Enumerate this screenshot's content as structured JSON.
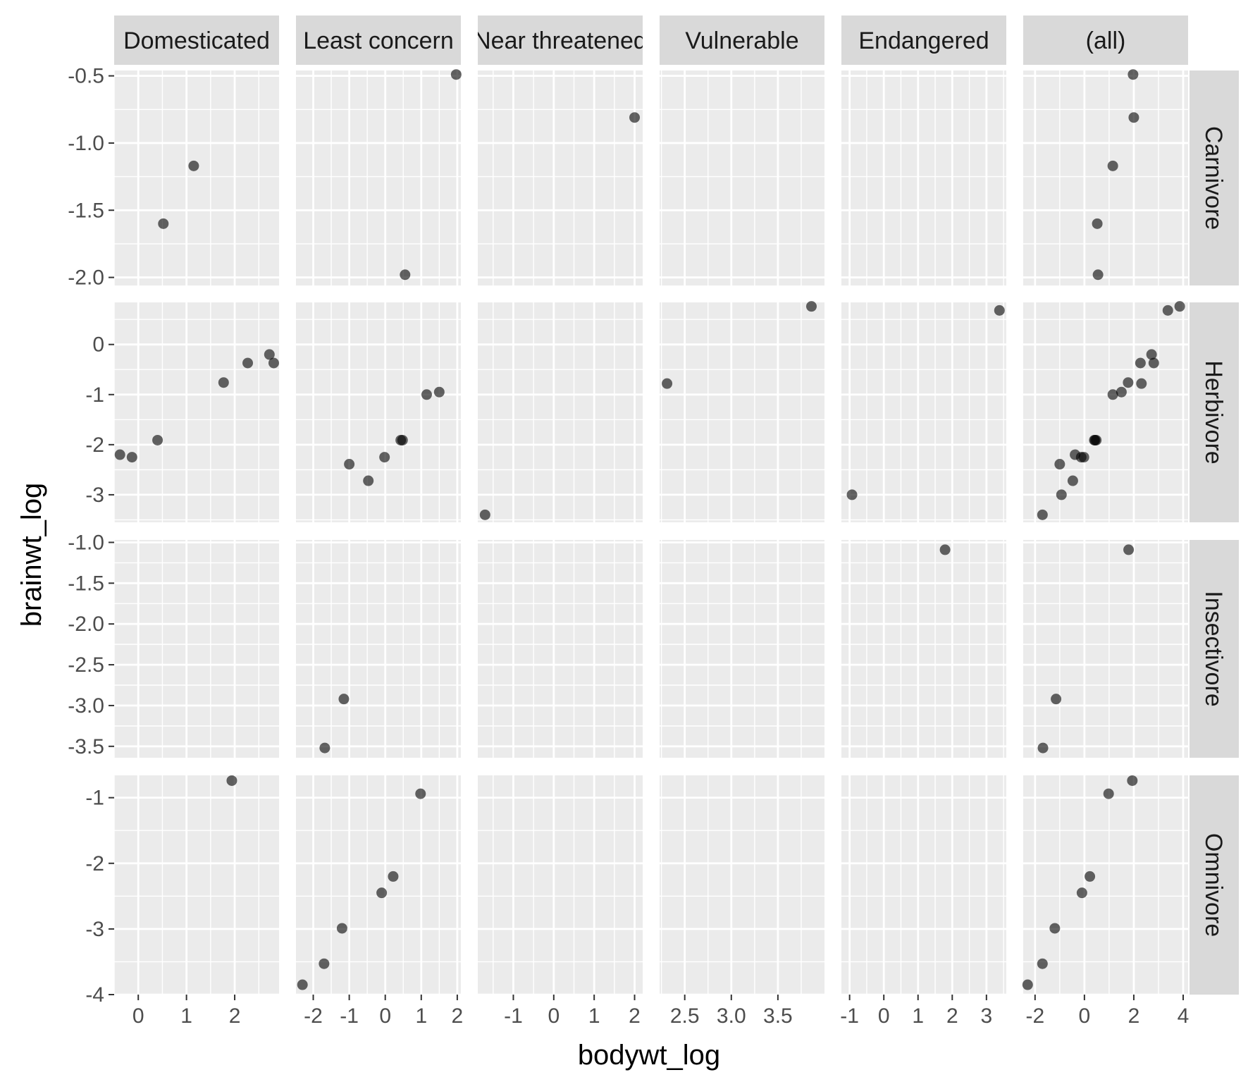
{
  "chart_data": {
    "type": "scatter",
    "xlabel": "bodywt_log",
    "ylabel": "brainwt_log",
    "col_facets": [
      "Domesticated",
      "Least concern",
      "Near threatened",
      "Vulnerable",
      "Endangered",
      "(all)"
    ],
    "row_facets": [
      "Carnivore",
      "Herbivore",
      "Insectivore",
      "Omnivore"
    ],
    "x_axes": [
      {
        "xlim": [
          -0.5,
          2.92
        ],
        "ticks": [
          0,
          1,
          2
        ],
        "minor": [
          -0.5,
          0.5,
          1.5,
          2.5
        ],
        "labels": [
          "0",
          "1",
          "2"
        ]
      },
      {
        "xlim": [
          -2.48,
          2.1
        ],
        "ticks": [
          -2,
          -1,
          0,
          1,
          2
        ],
        "minor": [
          -1.5,
          -0.5,
          0.5,
          1.5
        ],
        "labels": [
          "-2",
          "-1",
          "0",
          "1",
          "2"
        ]
      },
      {
        "xlim": [
          -1.88,
          2.2
        ],
        "ticks": [
          -1,
          0,
          1,
          2
        ],
        "minor": [
          -1.5,
          -0.5,
          0.5,
          1.5
        ],
        "labels": [
          "-1",
          "0",
          "1",
          "2"
        ]
      },
      {
        "xlim": [
          2.23,
          4.0
        ],
        "ticks": [
          2.5,
          3.0,
          3.5
        ],
        "minor": [
          2.25,
          2.75,
          3.25,
          3.75
        ],
        "labels": [
          "2.5",
          "3.0",
          "3.5"
        ]
      },
      {
        "xlim": [
          -1.24,
          3.58
        ],
        "ticks": [
          -1,
          0,
          1,
          2,
          3
        ],
        "minor": [
          -0.5,
          0.5,
          1.5,
          2.5,
          3.5
        ],
        "labels": [
          "-1",
          "0",
          "1",
          "2",
          "3"
        ]
      },
      {
        "xlim": [
          -2.48,
          4.2
        ],
        "ticks": [
          -2,
          0,
          2,
          4
        ],
        "minor": [
          -1,
          1,
          3
        ],
        "labels": [
          "-2",
          "0",
          "2",
          "4"
        ]
      }
    ],
    "y_axes": [
      {
        "ylim": [
          -2.06,
          -0.46
        ],
        "ticks": [
          -2.0,
          -1.5,
          -1.0,
          -0.5
        ],
        "minor": [
          -1.75,
          -1.25,
          -0.75
        ],
        "labels": [
          "-2.0",
          "-1.5",
          "-1.0",
          "-0.5"
        ]
      },
      {
        "ylim": [
          -3.55,
          0.84
        ],
        "ticks": [
          -3,
          -2,
          -1,
          0
        ],
        "minor": [
          -3.5,
          -2.5,
          -1.5,
          -0.5,
          0.5
        ],
        "labels": [
          "-3",
          "-2",
          "-1",
          "0"
        ]
      },
      {
        "ylim": [
          -3.64,
          -0.97
        ],
        "ticks": [
          -3.5,
          -3.0,
          -2.5,
          -2.0,
          -1.5,
          -1.0
        ],
        "minor": [
          -3.25,
          -2.75,
          -2.25,
          -1.75,
          -1.25
        ],
        "labels": [
          "-3.5",
          "-3.0",
          "-2.5",
          "-2.0",
          "-1.5",
          "-1.0"
        ]
      },
      {
        "ylim": [
          -4.0,
          -0.66
        ],
        "ticks": [
          -4,
          -3,
          -2,
          -1
        ],
        "minor": [
          -3.5,
          -2.5,
          -1.5
        ],
        "labels": [
          "-4",
          "-3",
          "-2",
          "-1"
        ]
      }
    ],
    "points": [
      [
        [
          [
            0.52,
            -1.6
          ],
          [
            1.15,
            -1.17
          ]
        ],
        [
          [
            0.55,
            -1.98
          ],
          [
            1.97,
            -0.49
          ]
        ],
        [
          [
            2.0,
            -0.81
          ]
        ],
        [],
        [],
        [
          [
            0.52,
            -1.6
          ],
          [
            1.15,
            -1.17
          ],
          [
            0.55,
            -1.98
          ],
          [
            1.97,
            -0.49
          ],
          [
            2.0,
            -0.81
          ]
        ]
      ],
      [
        [
          [
            -0.38,
            -2.2
          ],
          [
            -0.13,
            -2.25
          ],
          [
            0.4,
            -1.91
          ],
          [
            1.77,
            -0.76
          ],
          [
            2.27,
            -0.37
          ],
          [
            2.72,
            -0.2
          ],
          [
            2.81,
            -0.37
          ]
        ],
        [
          [
            -1.0,
            -2.39
          ],
          [
            -0.47,
            -2.72
          ],
          [
            -0.02,
            -2.25
          ],
          [
            0.43,
            -1.91
          ],
          [
            0.48,
            -1.91
          ],
          [
            1.15,
            -1.0
          ],
          [
            1.5,
            -0.95
          ]
        ],
        [
          [
            -1.7,
            -3.4
          ]
        ],
        [
          [
            2.31,
            -0.78
          ],
          [
            3.86,
            0.76
          ]
        ],
        [
          [
            -0.93,
            -3.0
          ],
          [
            3.38,
            0.68
          ]
        ],
        [
          [
            -0.38,
            -2.2
          ],
          [
            -0.13,
            -2.25
          ],
          [
            0.4,
            -1.91
          ],
          [
            1.77,
            -0.76
          ],
          [
            2.27,
            -0.37
          ],
          [
            2.72,
            -0.2
          ],
          [
            2.81,
            -0.37
          ],
          [
            -1.0,
            -2.39
          ],
          [
            -0.47,
            -2.72
          ],
          [
            -0.02,
            -2.25
          ],
          [
            0.43,
            -1.91
          ],
          [
            0.48,
            -1.91
          ],
          [
            1.15,
            -1.0
          ],
          [
            1.5,
            -0.95
          ],
          [
            -1.7,
            -3.4
          ],
          [
            2.31,
            -0.78
          ],
          [
            3.86,
            0.76
          ],
          [
            -0.93,
            -3.0
          ],
          [
            3.38,
            0.68
          ]
        ]
      ],
      [
        [],
        [
          [
            -1.15,
            -2.92
          ],
          [
            -1.68,
            -3.52
          ]
        ],
        [],
        [],
        [
          [
            1.79,
            -1.09
          ]
        ],
        [
          [
            -1.15,
            -2.92
          ],
          [
            -1.68,
            -3.52
          ],
          [
            1.79,
            -1.09
          ]
        ]
      ],
      [
        [
          [
            1.94,
            -0.74
          ]
        ],
        [
          [
            -2.3,
            -3.85
          ],
          [
            -1.7,
            -3.53
          ],
          [
            -1.2,
            -2.99
          ],
          [
            -0.1,
            -2.45
          ],
          [
            0.22,
            -2.2
          ],
          [
            0.98,
            -0.94
          ]
        ],
        [],
        [],
        [],
        [
          [
            1.94,
            -0.74
          ],
          [
            -2.3,
            -3.85
          ],
          [
            -1.7,
            -3.53
          ],
          [
            -1.2,
            -2.99
          ],
          [
            -0.1,
            -2.45
          ],
          [
            0.22,
            -2.2
          ],
          [
            0.98,
            -0.94
          ]
        ]
      ]
    ]
  }
}
